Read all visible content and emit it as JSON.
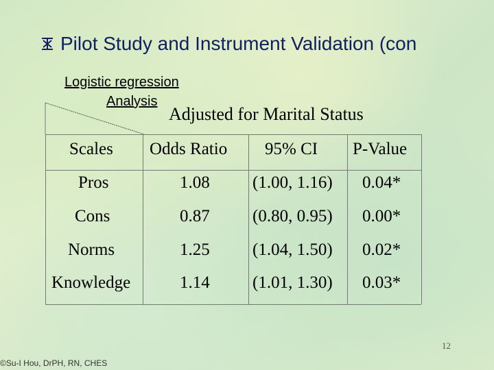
{
  "slide": {
    "title": "Pilot Study and Instrument Validation (con",
    "bullet_icon": "cross-bullet-icon",
    "label_line1": "Logistic regression",
    "label_line2": "Analysis",
    "subtitle": "Adjusted for Marital Status",
    "page_number": "12",
    "credit": "©Su-I Hou, DrPH, RN, CHES"
  },
  "table": {
    "headers": [
      "Scales",
      "Odds Ratio",
      "95% CI",
      "P-Value"
    ],
    "rows": [
      [
        "Pros",
        "1.08",
        "(1.00, 1.16)",
        "0.04*"
      ],
      [
        "Cons",
        "0.87",
        "(0.80, 0.95)",
        "0.00*"
      ],
      [
        "Norms",
        "1.25",
        "(1.04, 1.50)",
        "0.02*"
      ],
      [
        "Knowledge",
        "1.14",
        "(1.01, 1.30)",
        "0.03*"
      ]
    ]
  }
}
